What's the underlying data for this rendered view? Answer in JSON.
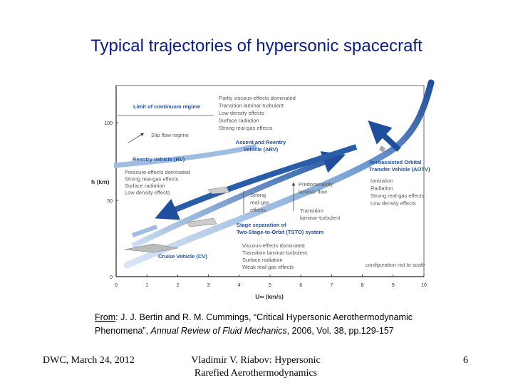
{
  "title": "Typical trajectories of hypersonic spacecraft",
  "figure": {
    "x_axis_label": "U∞ (km/s)",
    "y_axis_label": "h (km)",
    "x_ticks": [
      "0",
      "1",
      "2",
      "3",
      "4",
      "5",
      "6",
      "7",
      "8",
      "9",
      "10"
    ],
    "y_ticks": [
      "0",
      "50",
      "100"
    ],
    "annotations": [
      {
        "lines": [
          "Partly viscous-effects dominated",
          "Transition laminar-turbulent",
          "Low density effects",
          "Surface radiation",
          "Strong real-gas effects"
        ]
      },
      {
        "lines": [
          "Limit of continuum regime"
        ]
      },
      {
        "lines": [
          "Slip flow regime"
        ]
      },
      {
        "lines": [
          "Reentry Vehicle (RV)"
        ]
      },
      {
        "lines": [
          "Pressure-effects dominated",
          "Strong real-gas effects",
          "Surface radiation",
          "Low density effects"
        ]
      },
      {
        "lines": [
          "Ascent and Reentry",
          "Vehicle (ARV)"
        ]
      },
      {
        "lines": [
          "Aeroassisted Orbital",
          "Transfer Vehicle (AOTV)"
        ]
      },
      {
        "lines": [
          "Ionization",
          "Radiation",
          "Strong real-gas effects",
          "Low density effects"
        ]
      },
      {
        "lines": [
          "Strong",
          "real-gas",
          "effects"
        ]
      },
      {
        "lines": [
          "Predominantly",
          "laminar flow"
        ]
      },
      {
        "lines": [
          "Transition",
          "laminar-turbulent"
        ]
      },
      {
        "lines": [
          "Stage separation of",
          "Two-Stage-to-Orbit (TSTO) system"
        ]
      },
      {
        "lines": [
          "Viscous-effects dominated",
          "Transition laminar-turbulent",
          "Surface radiation",
          "Weak real-gas effects"
        ]
      },
      {
        "lines": [
          "Cruise Vehicle (CV)"
        ]
      },
      {
        "lines": [
          "configuration not to scale"
        ]
      }
    ]
  },
  "citation": {
    "line1": [
      "From",
      ": J. J. Bertin and R. M. Cummings, “Critical Hypersonic Aerothermodynamic"
    ],
    "line2": [
      "Phenomena”, ",
      "Annual Review of Fluid Mechanics",
      ", 2006, Vol. 38, pp.129-157"
    ]
  },
  "footer": {
    "left": "DWC, March 24, 2012",
    "center": [
      "Vladimir V. Riabov: Hypersonic",
      "Rarefied Aerothermodynamics"
    ],
    "right": "6"
  }
}
